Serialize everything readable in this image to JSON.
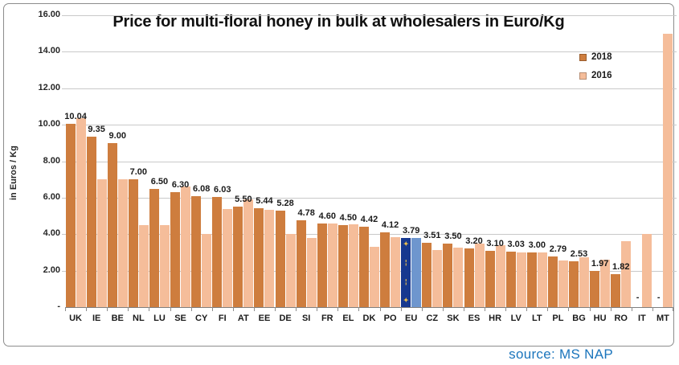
{
  "chart_data": {
    "type": "bar",
    "title": "Price for multi-floral honey in bulk at wholesalers in Euro/Kg",
    "ylabel": "in Euros / Kg",
    "ylim": [
      0,
      16
    ],
    "ytick_step": 2,
    "ytick_labels_top_down": [
      "16.00",
      "14.00",
      "12.00",
      "10.00",
      "8.00",
      "6.00",
      "4.00",
      "2.00",
      "-"
    ],
    "grid": true,
    "legend_position": "top-right",
    "categories": [
      "UK",
      "IE",
      "BE",
      "NL",
      "LU",
      "SE",
      "CY",
      "FI",
      "AT",
      "EE",
      "DE",
      "SI",
      "FR",
      "EL",
      "DK",
      "PO",
      "EU",
      "CZ",
      "SK",
      "ES",
      "HR",
      "LV",
      "LT",
      "PL",
      "BG",
      "HU",
      "RO",
      "IT",
      "MT"
    ],
    "series": [
      {
        "name": "2018",
        "color": "#ce7d3e",
        "values": [
          10.04,
          9.35,
          9.0,
          7.0,
          6.5,
          6.3,
          6.08,
          6.03,
          5.5,
          5.44,
          5.28,
          4.78,
          4.6,
          4.5,
          4.42,
          4.12,
          3.79,
          3.51,
          3.5,
          3.2,
          3.1,
          3.03,
          3.0,
          2.79,
          2.53,
          1.97,
          1.82,
          null,
          null
        ]
      },
      {
        "name": "2016",
        "color": "#f5bd9a",
        "values": [
          10.35,
          7.0,
          7.0,
          4.5,
          4.5,
          6.6,
          4.0,
          5.4,
          5.9,
          5.35,
          4.0,
          3.8,
          4.6,
          4.55,
          3.3,
          3.85,
          3.78,
          3.15,
          3.25,
          3.5,
          3.4,
          3.0,
          3.0,
          2.55,
          2.75,
          2.6,
          3.6,
          4.0,
          15.0
        ]
      }
    ],
    "value_labels_2018": [
      "10.04",
      "9.35",
      "9.00",
      "7.00",
      "6.50",
      "6.30",
      "6.08",
      "6.03",
      "5.50",
      "5.44",
      "5.28",
      "4.78",
      "4.60",
      "4.50",
      "4.42",
      "4.12",
      "3.79",
      "3.51",
      "3.50",
      "3.20",
      "3.10",
      "3.03",
      "3.00",
      "2.79",
      "2.53",
      "1.97",
      "1.82",
      "-",
      "-"
    ],
    "eu_highlight": {
      "category": "EU",
      "color_2018": "#16388f",
      "color_2016": "#6e96ce",
      "glyphs": "✦¦¦✦"
    },
    "source": "source: MS NAP",
    "source_color": "#1b75bc"
  }
}
